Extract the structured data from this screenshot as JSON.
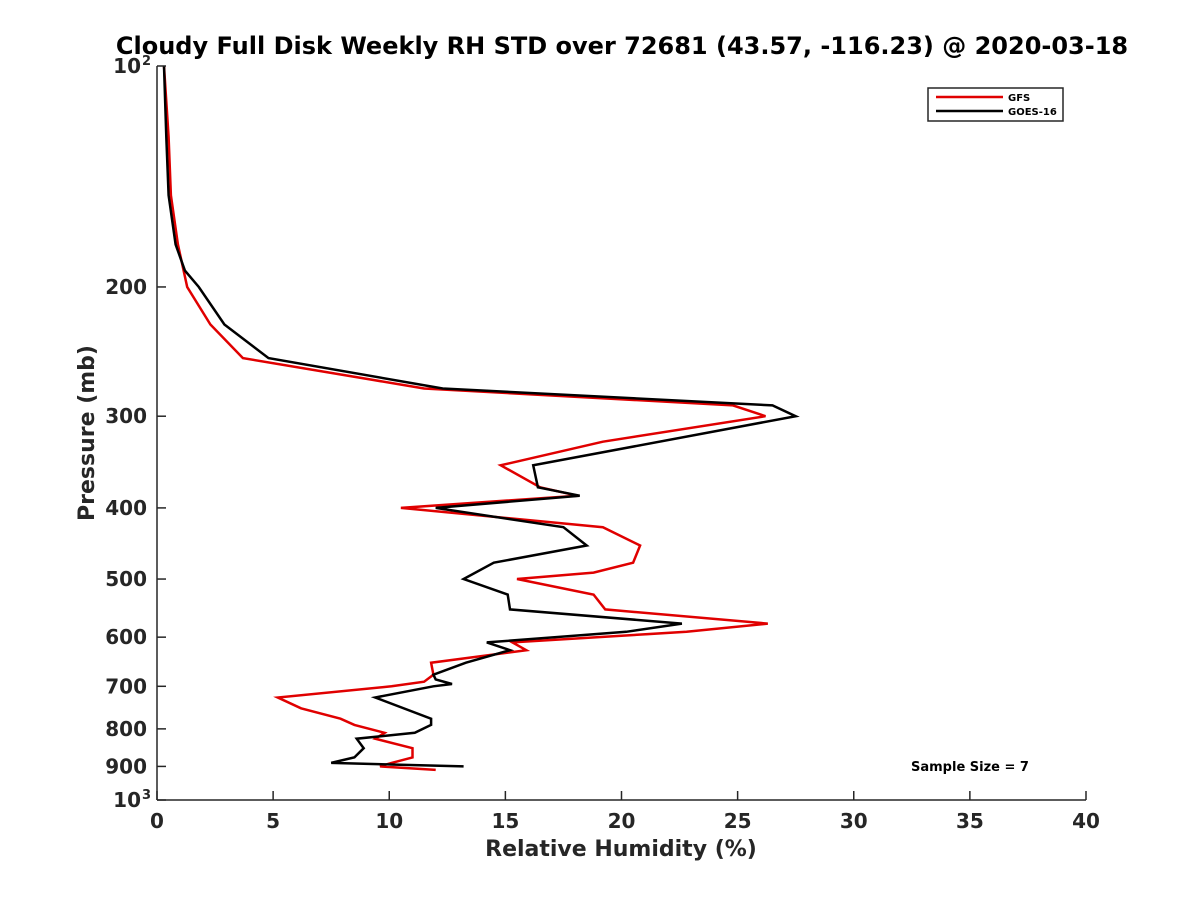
{
  "chart_data": {
    "type": "line",
    "title": "Cloudy Full Disk Weekly RH STD over 72681 (43.57, -116.23) @ 2020-03-18",
    "xlabel": "Relative Humidity (%)",
    "ylabel": "Pressure (mb)",
    "xlim": [
      0,
      40
    ],
    "ylim": [
      100,
      1000
    ],
    "y_scale": "log",
    "y_reversed": true,
    "x_ticks": [
      "0",
      "5",
      "10",
      "15",
      "20",
      "25",
      "30",
      "35",
      "40"
    ],
    "y_ticks": [
      {
        "value": 100,
        "label": "10",
        "sup": "2"
      },
      {
        "value": 200,
        "label": "200",
        "sup": ""
      },
      {
        "value": 300,
        "label": "300",
        "sup": ""
      },
      {
        "value": 400,
        "label": "400",
        "sup": ""
      },
      {
        "value": 500,
        "label": "500",
        "sup": ""
      },
      {
        "value": 600,
        "label": "600",
        "sup": ""
      },
      {
        "value": 700,
        "label": "700",
        "sup": ""
      },
      {
        "value": 800,
        "label": "800",
        "sup": ""
      },
      {
        "value": 900,
        "label": "900",
        "sup": ""
      },
      {
        "value": 1000,
        "label": "10",
        "sup": "3"
      }
    ],
    "grid": false,
    "legend": "top-right",
    "annotation": "Sample Size = 7",
    "series": [
      {
        "name": "GFS",
        "color": "#e00000",
        "points": [
          [
            0.3,
            100
          ],
          [
            0.5,
            125
          ],
          [
            0.6,
            150
          ],
          [
            0.9,
            175
          ],
          [
            1.3,
            200
          ],
          [
            2.3,
            225
          ],
          [
            3.7,
            250
          ],
          [
            11.5,
            275
          ],
          [
            24.8,
            290
          ],
          [
            26.2,
            300
          ],
          [
            19.2,
            325
          ],
          [
            14.8,
            350
          ],
          [
            16.5,
            375
          ],
          [
            18.1,
            385
          ],
          [
            10.5,
            400
          ],
          [
            19.2,
            425
          ],
          [
            20.8,
            450
          ],
          [
            20.5,
            475
          ],
          [
            18.8,
            490
          ],
          [
            15.5,
            500
          ],
          [
            18.8,
            525
          ],
          [
            19.3,
            550
          ],
          [
            26.3,
            575
          ],
          [
            22.8,
            590
          ],
          [
            15.3,
            610
          ],
          [
            15.9,
            625
          ],
          [
            11.8,
            650
          ],
          [
            11.9,
            675
          ],
          [
            11.5,
            690
          ],
          [
            10.1,
            700
          ],
          [
            5.2,
            725
          ],
          [
            6.2,
            750
          ],
          [
            7.9,
            775
          ],
          [
            8.5,
            790
          ],
          [
            9.8,
            810
          ],
          [
            9.4,
            825
          ],
          [
            11.0,
            850
          ],
          [
            11.0,
            875
          ],
          [
            10.1,
            890
          ],
          [
            9.6,
            900
          ],
          [
            12.0,
            910
          ]
        ]
      },
      {
        "name": "GOES-16",
        "color": "#000000",
        "points": [
          [
            0.3,
            100
          ],
          [
            0.4,
            125
          ],
          [
            0.5,
            150
          ],
          [
            0.8,
            175
          ],
          [
            1.2,
            190
          ],
          [
            1.8,
            200
          ],
          [
            2.9,
            225
          ],
          [
            4.8,
            250
          ],
          [
            12.3,
            275
          ],
          [
            26.5,
            290
          ],
          [
            27.5,
            300
          ],
          [
            16.2,
            350
          ],
          [
            16.4,
            375
          ],
          [
            18.2,
            385
          ],
          [
            12.0,
            400
          ],
          [
            17.5,
            425
          ],
          [
            18.5,
            450
          ],
          [
            14.5,
            475
          ],
          [
            13.2,
            500
          ],
          [
            15.1,
            525
          ],
          [
            15.2,
            550
          ],
          [
            22.6,
            575
          ],
          [
            20.2,
            590
          ],
          [
            14.2,
            610
          ],
          [
            15.2,
            625
          ],
          [
            13.3,
            650
          ],
          [
            11.9,
            675
          ],
          [
            12.0,
            685
          ],
          [
            12.7,
            695
          ],
          [
            11.9,
            700
          ],
          [
            9.4,
            725
          ],
          [
            11.8,
            775
          ],
          [
            11.8,
            790
          ],
          [
            11.1,
            810
          ],
          [
            8.6,
            825
          ],
          [
            8.9,
            850
          ],
          [
            8.5,
            875
          ],
          [
            7.5,
            890
          ],
          [
            13.2,
            900
          ]
        ]
      }
    ]
  }
}
